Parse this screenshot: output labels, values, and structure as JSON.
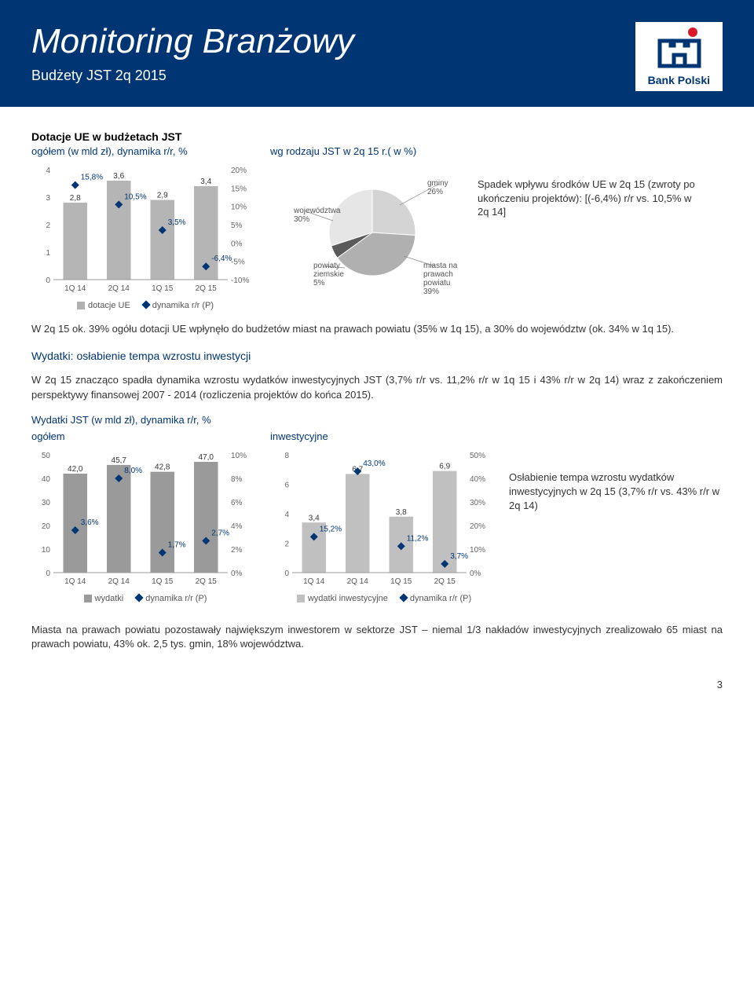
{
  "header": {
    "title": "Monitoring Branżowy",
    "subtitle": "Budżety JST 2q 2015",
    "bank": "Bank Polski"
  },
  "sectionA": {
    "title": "Dotacje UE w budżetach JST",
    "chart1_title": "ogółem (w mld zł), dynamika r/r, %",
    "pie_title": "wg rodzaju JST w 2q 15 r.( w %)",
    "note": "Spadek wpływu środków UE w 2q 15 (zwroty po ukończeniu projektów): [(-6,4%) r/r vs. 10,5% w 2q 14]"
  },
  "barChart1": {
    "categories": [
      "1Q 14",
      "2Q 14",
      "1Q 15",
      "2Q 15"
    ],
    "bars": [
      2.8,
      3.6,
      2.9,
      3.4
    ],
    "diamonds_pct": [
      15.8,
      10.5,
      3.5,
      -6.4
    ],
    "diamond_labels": [
      "15,8%",
      "10,5%",
      "3,5%",
      "-6,4%"
    ],
    "bar_labels": [
      "2,8",
      "3,6",
      "2,9",
      "3,4"
    ],
    "ylim_left": [
      0,
      4
    ],
    "ylim_right": [
      -10,
      20
    ],
    "y_left_ticks": [
      0,
      1,
      2,
      3,
      4
    ],
    "y_right_ticks": [
      "-10%",
      "-5%",
      "0%",
      "5%",
      "10%",
      "15%",
      "20%"
    ],
    "bar_color": "#b5b5b5",
    "diamond_color": "#003574",
    "legend_bar": "dotacje UE",
    "legend_dia": "dynamika r/r (P)"
  },
  "pie": {
    "slices": [
      {
        "label": "gminy",
        "pct": "26%",
        "value": 26,
        "start": 0,
        "color": "#d4d4d4"
      },
      {
        "label": "miasta na prawach powiatu",
        "pct": "39%",
        "value": 39,
        "start": 26,
        "color": "#b0b0b0"
      },
      {
        "label": "powiaty ziemskie",
        "pct": "5%",
        "value": 5,
        "start": 65,
        "color": "#5a5a5a"
      },
      {
        "label": "województwa",
        "pct": "30%",
        "value": 30,
        "start": 70,
        "color": "#e6e6e6"
      }
    ]
  },
  "para1": "W 2q 15 ok. 39% ogółu dotacji UE wpłynęło do budżetów miast na prawach powiatu (35% w 1q 15), a 30% do województw (ok. 34% w 1q 15).",
  "blueHead": "Wydatki: osłabienie tempa wzrostu inwestycji",
  "para2": "W 2q 15 znacząco spadła dynamika wzrostu wydatków inwestycyjnych JST (3,7% r/r vs. 11,2% r/r w 1q 15 i 43% r/r w 2q 14) wraz z zakończeniem perspektywy finansowej 2007 - 2014 (rozliczenia projektów do końca 2015).",
  "sectionB_title": "Wydatki JST (w mld zł), dynamika r/r, %",
  "sectionB_left": "ogółem",
  "sectionB_right": "inwestycyjne",
  "barChart2": {
    "categories": [
      "1Q 14",
      "2Q 14",
      "1Q 15",
      "2Q 15"
    ],
    "bars": [
      42.0,
      45.7,
      42.8,
      47.0
    ],
    "bar_labels": [
      "42,0",
      "45,7",
      "42,8",
      "47,0"
    ],
    "diamonds_pct": [
      3.6,
      8.0,
      1.7,
      2.7
    ],
    "diamond_labels": [
      "3,6%",
      "8,0%",
      "1,7%",
      "2,7%"
    ],
    "ylim_left": [
      0,
      50
    ],
    "y_left_ticks": [
      0,
      10,
      20,
      30,
      40,
      50
    ],
    "ylim_right": [
      0,
      10
    ],
    "y_right_ticks": [
      "0%",
      "2%",
      "4%",
      "6%",
      "8%",
      "10%"
    ],
    "bar_color": "#9a9a9a",
    "diamond_color": "#003574",
    "legend_bar": "wydatki",
    "legend_dia": "dynamika r/r (P)"
  },
  "barChart3": {
    "categories": [
      "1Q 14",
      "2Q 14",
      "1Q 15",
      "2Q 15"
    ],
    "bars": [
      3.4,
      6.7,
      3.8,
      6.9
    ],
    "bar_labels": [
      "3,4",
      "6,7",
      "3,8",
      "6,9"
    ],
    "diamonds_pct": [
      15.2,
      43.0,
      11.2,
      3.7
    ],
    "diamond_labels": [
      "15,2%",
      "43,0%",
      "11,2%",
      "3,7%"
    ],
    "ylim_left": [
      0,
      8
    ],
    "y_left_ticks": [
      0,
      2,
      4,
      6,
      8
    ],
    "ylim_right": [
      0,
      50
    ],
    "y_right_ticks": [
      "0%",
      "10%",
      "20%",
      "30%",
      "40%",
      "50%"
    ],
    "bar_color": "#c0c0c0",
    "diamond_color": "#003574",
    "legend_bar": "wydatki inwestycyjne",
    "legend_dia": "dynamika r/r (P)"
  },
  "note2": "Osłabienie tempa wzrostu wydatków inwestycyjnych w 2q 15 (3,7% r/r vs. 43% r/r w 2q 14)",
  "para3": "Miasta na prawach powiatu pozostawały największym inwestorem w sektorze JST – niemal 1/3 nakładów inwestycyjnych zrealizowało 65 miast na prawach powiatu, 43% ok. 2,5 tys. gmin, 18% województwa.",
  "pageNum": "3"
}
